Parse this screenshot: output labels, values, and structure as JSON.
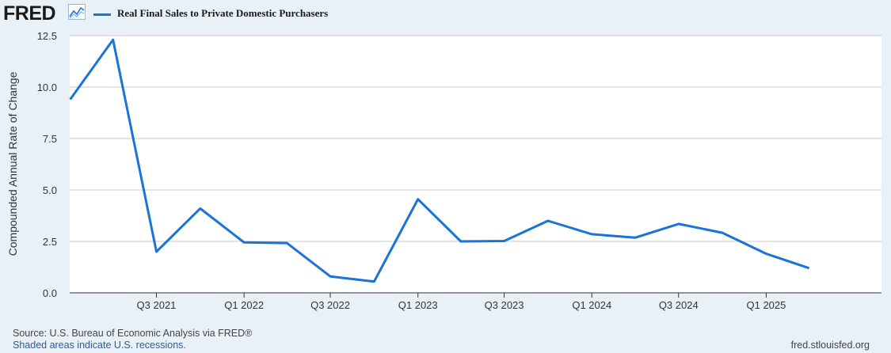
{
  "header": {
    "logo_text": "FRED",
    "legend_label": "Real Final Sales to Private Domestic Purchasers",
    "line_color": "#1a73d9"
  },
  "chart_data": {
    "type": "line",
    "ylabel": "Compounded Annual Rate of Change",
    "ylim": [
      0,
      12.5
    ],
    "yticks": [
      "0.0",
      "2.5",
      "5.0",
      "7.5",
      "10.0",
      "12.5"
    ],
    "xlim": [
      "2020-12-31",
      "2025-08-31"
    ],
    "xticks": [
      {
        "label": "Q3 2021",
        "date": "2021-07-01"
      },
      {
        "label": "Q1 2022",
        "date": "2022-01-01"
      },
      {
        "label": "Q3 2022",
        "date": "2022-07-01"
      },
      {
        "label": "Q1 2023",
        "date": "2023-01-01"
      },
      {
        "label": "Q3 2023",
        "date": "2023-07-01"
      },
      {
        "label": "Q1 2024",
        "date": "2024-01-01"
      },
      {
        "label": "Q3 2024",
        "date": "2024-07-01"
      },
      {
        "label": "Q1 2025",
        "date": "2025-01-01"
      }
    ],
    "grid": true,
    "series": [
      {
        "name": "Real Final Sales to Private Domestic Purchasers",
        "color": "#1a73d9",
        "x": [
          "2021-01-01",
          "2021-04-01",
          "2021-07-01",
          "2021-10-01",
          "2022-01-01",
          "2022-04-01",
          "2022-07-01",
          "2022-10-01",
          "2023-01-01",
          "2023-04-01",
          "2023-07-01",
          "2023-10-01",
          "2024-01-01",
          "2024-04-01",
          "2024-07-01",
          "2024-10-01",
          "2025-01-01",
          "2025-04-01"
        ],
        "values": [
          9.4,
          12.3,
          2.0,
          4.1,
          2.45,
          2.42,
          0.8,
          0.55,
          4.55,
          2.5,
          2.52,
          3.5,
          2.85,
          2.68,
          3.35,
          2.92,
          1.9,
          1.2
        ]
      }
    ]
  },
  "footer": {
    "source": "Source: U.S. Bureau of Economic Analysis via FRED®",
    "shaded_note": "Shaded areas indicate U.S. recessions.",
    "url": "fred.stlouisfed.org"
  }
}
